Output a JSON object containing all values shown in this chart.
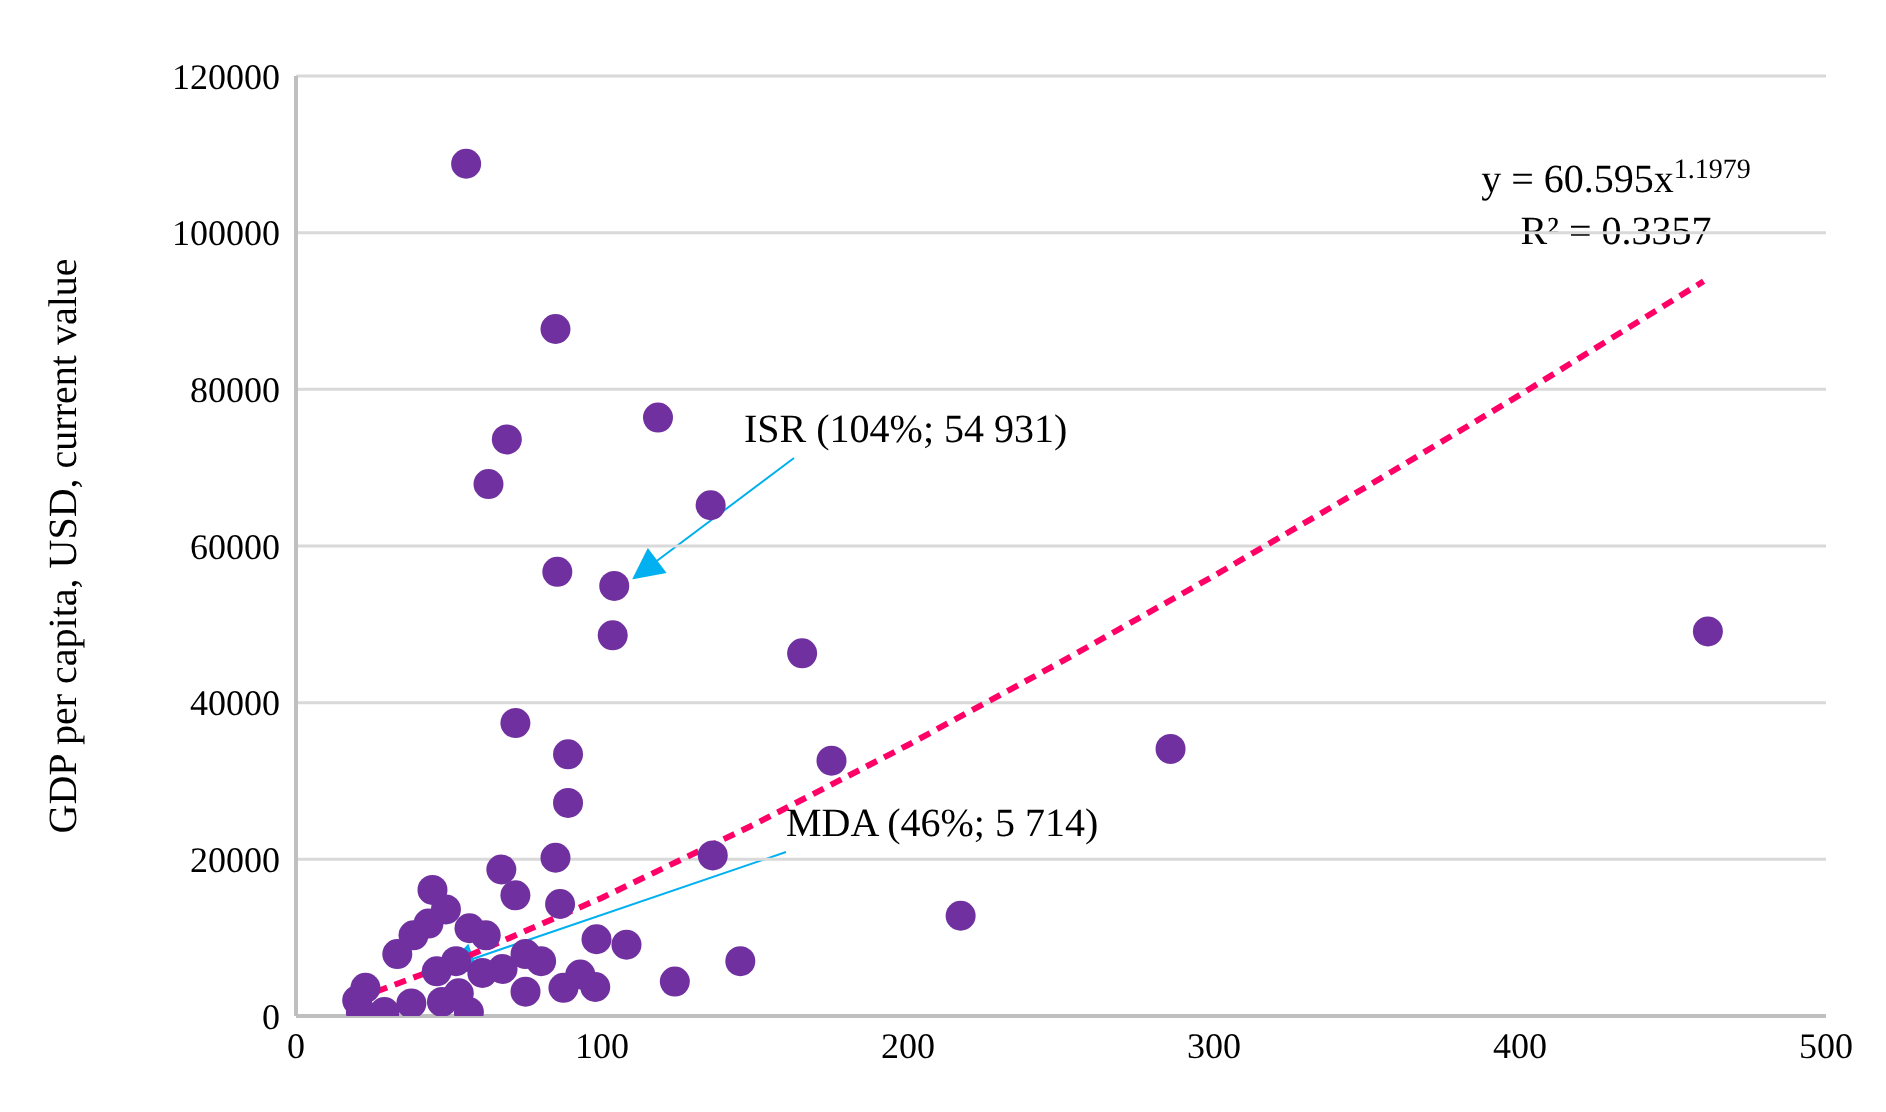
{
  "chart_data": {
    "type": "scatter",
    "ylabel": "GDP per capita, USD, current value",
    "xlim": [
      0,
      500
    ],
    "xticks": [
      0,
      100,
      200,
      300,
      400,
      500
    ],
    "ylim": [
      0,
      120000
    ],
    "yticks": [
      0,
      20000,
      40000,
      60000,
      80000,
      100000,
      120000
    ],
    "grid": "y",
    "legend": false,
    "series": [
      {
        "color": "#7030a0",
        "marker": "circle",
        "x": [
          55.6,
          84.8,
          118.3,
          68.9,
          62.9,
          135.5,
          85.4,
          104,
          103.5,
          165.4,
          71.7,
          88.9,
          175,
          461.4,
          285.8,
          217.2,
          88.9,
          136.2,
          84.8,
          67.1,
          71.7,
          44.6,
          86.3,
          49,
          43.3,
          38.4,
          56.7,
          62,
          98.2,
          108,
          145.2,
          33.1,
          75,
          80.1,
          52.3,
          123.8,
          92.9,
          97.8,
          87.4,
          75,
          67.5,
          60.9,
          46,
          37.7,
          22.7,
          20,
          28.9,
          47.7,
          56.5,
          53.2,
          21.2
        ],
        "values": [
          108800,
          87700,
          76400,
          73600,
          67900,
          65200,
          56700,
          54900,
          48600,
          46300,
          37400,
          33400,
          32600,
          49100,
          34100,
          12800,
          27200,
          20500,
          20200,
          18700,
          15400,
          16100,
          14300,
          13600,
          11800,
          10300,
          11200,
          10300,
          9800,
          9100,
          7000,
          7900,
          7900,
          7000,
          7000,
          4400,
          5300,
          3700,
          3600,
          3100,
          6000,
          5500,
          5700,
          1600,
          3600,
          2000,
          500,
          1800,
          500,
          2900,
          500
        ]
      },
      {
        "type": "line",
        "color": "#ff0066",
        "marker": "none",
        "line_style": "dashed",
        "x": [
          20,
          50,
          100,
          150,
          200,
          250,
          300,
          350,
          400,
          460
        ],
        "values": [
          2200,
          6600,
          15100,
          24500,
          34600,
          45200,
          56200,
          67600,
          79300,
          93800
        ]
      }
    ],
    "annotations": [
      "y = 60.595x$^{1.1979}$",
      "R² = 0.3357",
      "ISR (104%; 54 931)",
      "MDA (46%; 5 714)"
    ]
  }
}
